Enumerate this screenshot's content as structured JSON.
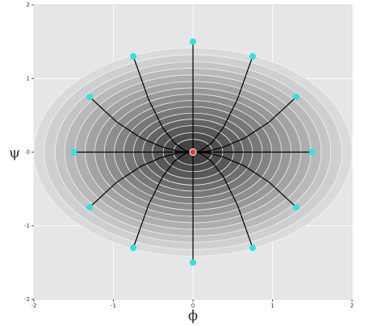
{
  "chart_data": {
    "type": "phase",
    "xlabel": "ϕ",
    "ylabel": "ψ",
    "xlim": [
      -2,
      2
    ],
    "ylim": [
      -2,
      2
    ],
    "xticks": [
      -2,
      -1,
      0,
      1,
      2
    ],
    "yticks": [
      -2,
      -1,
      0,
      1,
      2
    ],
    "grid": true,
    "contour_levels": [
      2,
      1.75,
      1.5,
      1.3,
      1.1,
      0.92,
      0.76,
      0.62,
      0.49,
      0.38,
      0.28,
      0.2,
      0.13,
      0.07,
      0.03
    ],
    "line_color": "#000000",
    "start_color": "#33e0e0",
    "trajectories": [
      {
        "x": [
          1.5,
          1.11,
          0.75,
          0.45,
          0.2,
          0.05
        ],
        "y": [
          0,
          0,
          0,
          0,
          0,
          0
        ]
      },
      {
        "x": [
          1.3,
          0.96,
          0.65,
          0.39,
          0.18,
          0.04
        ],
        "y": [
          0.75,
          0.41,
          0.19,
          0.07,
          0.01,
          0
        ]
      },
      {
        "x": [
          0.75,
          0.56,
          0.38,
          0.23,
          0.1,
          0.02
        ],
        "y": [
          1.3,
          0.72,
          0.33,
          0.12,
          0.02,
          0
        ]
      },
      {
        "x": [
          0,
          0,
          0,
          0,
          0,
          0
        ],
        "y": [
          1.5,
          0.83,
          0.38,
          0.14,
          0.03,
          0
        ]
      },
      {
        "x": [
          -0.75,
          -0.56,
          -0.38,
          -0.23,
          -0.1,
          -0.02
        ],
        "y": [
          1.3,
          0.72,
          0.33,
          0.12,
          0.02,
          0
        ]
      },
      {
        "x": [
          -1.3,
          -0.96,
          -0.65,
          -0.39,
          -0.18,
          -0.04
        ],
        "y": [
          0.75,
          0.41,
          0.19,
          0.07,
          0.01,
          0
        ]
      },
      {
        "x": [
          -1.5,
          -1.11,
          -0.75,
          -0.45,
          -0.2,
          -0.05
        ],
        "y": [
          0,
          0,
          0,
          0,
          0,
          0
        ]
      },
      {
        "x": [
          -1.3,
          -0.96,
          -0.65,
          -0.39,
          -0.18,
          -0.04
        ],
        "y": [
          -0.75,
          -0.41,
          -0.19,
          -0.07,
          -0.01,
          0
        ]
      },
      {
        "x": [
          -0.75,
          -0.56,
          -0.38,
          -0.23,
          -0.1,
          -0.02
        ],
        "y": [
          -1.3,
          -0.72,
          -0.33,
          -0.12,
          -0.02,
          0
        ]
      },
      {
        "x": [
          0,
          0,
          0,
          0,
          0,
          0
        ],
        "y": [
          -1.5,
          -0.83,
          -0.38,
          -0.14,
          -0.03,
          0
        ]
      },
      {
        "x": [
          0.75,
          0.56,
          0.38,
          0.23,
          0.1,
          0.02
        ],
        "y": [
          -1.3,
          -0.72,
          -0.33,
          -0.12,
          -0.02,
          0
        ]
      },
      {
        "x": [
          1.3,
          0.96,
          0.65,
          0.39,
          0.18,
          0.04
        ],
        "y": [
          -0.75,
          -0.41,
          -0.19,
          -0.07,
          -0.01,
          0
        ]
      }
    ],
    "equilibrium": {
      "x": 0,
      "y": 0,
      "color": "#e53935"
    }
  }
}
